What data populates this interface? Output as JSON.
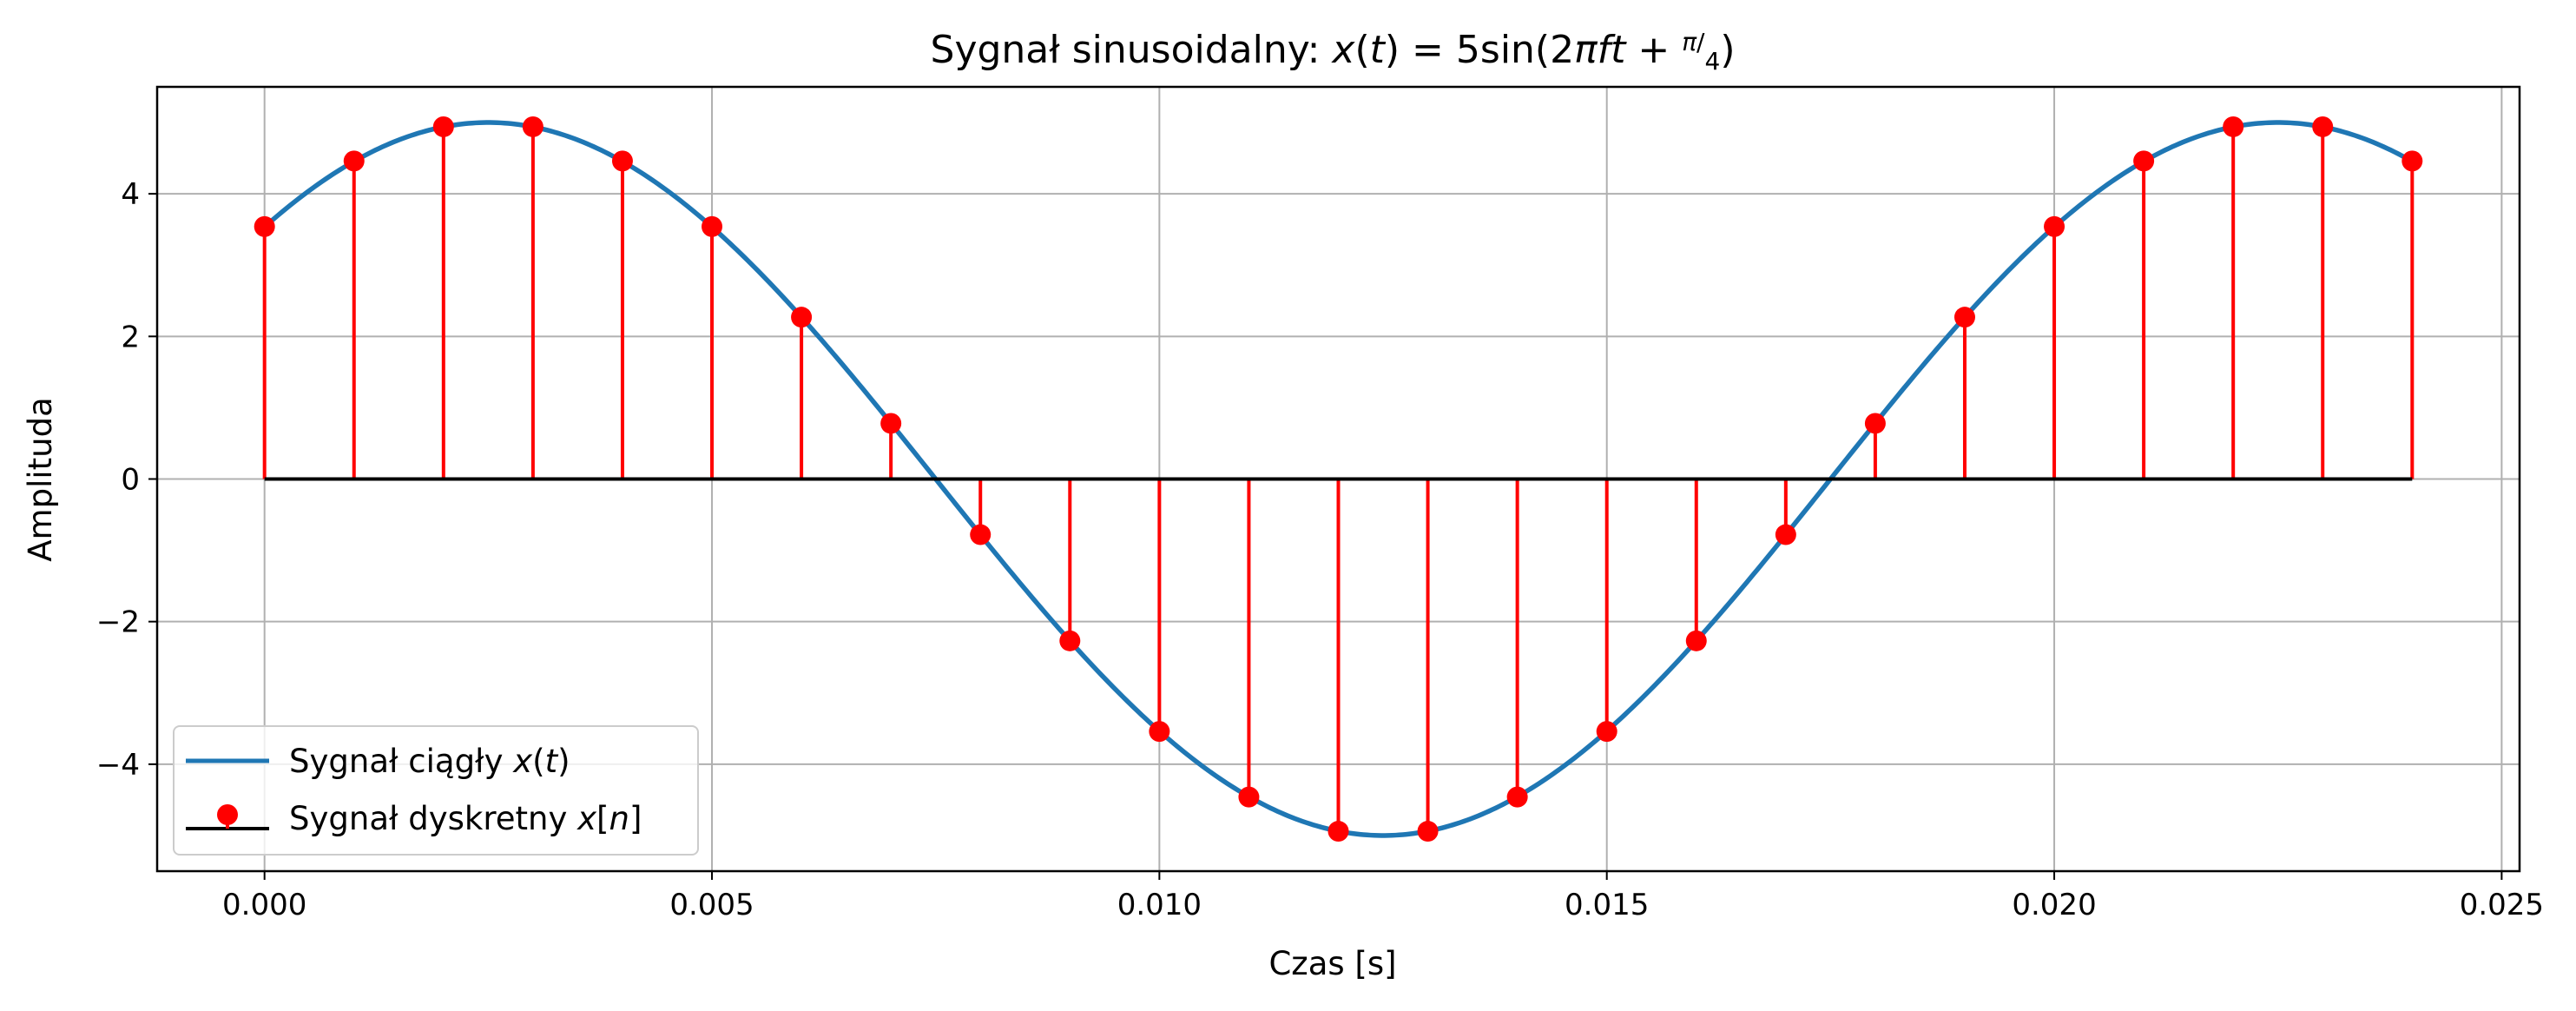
{
  "chart_data": {
    "type": "line",
    "title": {
      "prefix": "Sygnał sinusoidalny: ",
      "x": "x",
      "t": "t",
      "eq": " = 5sin(2",
      "pi": "π",
      "ft": "ft",
      "plus": " + ",
      "frac_num": "π",
      "frac_den": "4",
      "close": ")"
    },
    "xlabel": "Czas [s]",
    "ylabel": "Amplituda",
    "xlim": [
      -0.0012,
      0.0252
    ],
    "ylim": [
      -5.5,
      5.5
    ],
    "xticks": [
      "0.000",
      "0.005",
      "0.010",
      "0.015",
      "0.020",
      "0.025"
    ],
    "xtick_values": [
      0,
      0.005,
      0.01,
      0.015,
      0.02,
      0.025
    ],
    "yticks": [
      "−4",
      "−2",
      "0",
      "2",
      "4"
    ],
    "ytick_values": [
      -4,
      -2,
      0,
      2,
      4
    ],
    "grid": true,
    "legend_position": "lower-left",
    "continuous": {
      "name": "Sygnał ciągły",
      "name_var": "x",
      "name_arg": "t",
      "amplitude": 5,
      "frequency_hz": 50,
      "phase_rad": 0.7853981634,
      "t_start": 0,
      "t_end": 0.024,
      "color": "#1f77b4"
    },
    "discrete": {
      "name": "Sygnał dyskretny",
      "name_var": "x",
      "name_arg": "n",
      "color": "#ff0000",
      "baseline_color": "#000000",
      "t": [
        0.0,
        0.001,
        0.002,
        0.003,
        0.004,
        0.005,
        0.006,
        0.007,
        0.008,
        0.009,
        0.01,
        0.011,
        0.012,
        0.013,
        0.014,
        0.015,
        0.016,
        0.017,
        0.018,
        0.019,
        0.02,
        0.021,
        0.022,
        0.023,
        0.024
      ],
      "values": [
        3.54,
        4.46,
        4.94,
        4.94,
        4.46,
        3.54,
        2.27,
        0.78,
        -0.78,
        -2.27,
        -3.54,
        -4.46,
        -4.94,
        -4.94,
        -4.46,
        -3.54,
        -2.27,
        -0.78,
        0.78,
        2.27,
        3.54,
        4.46,
        4.94,
        4.94,
        4.46
      ]
    }
  }
}
